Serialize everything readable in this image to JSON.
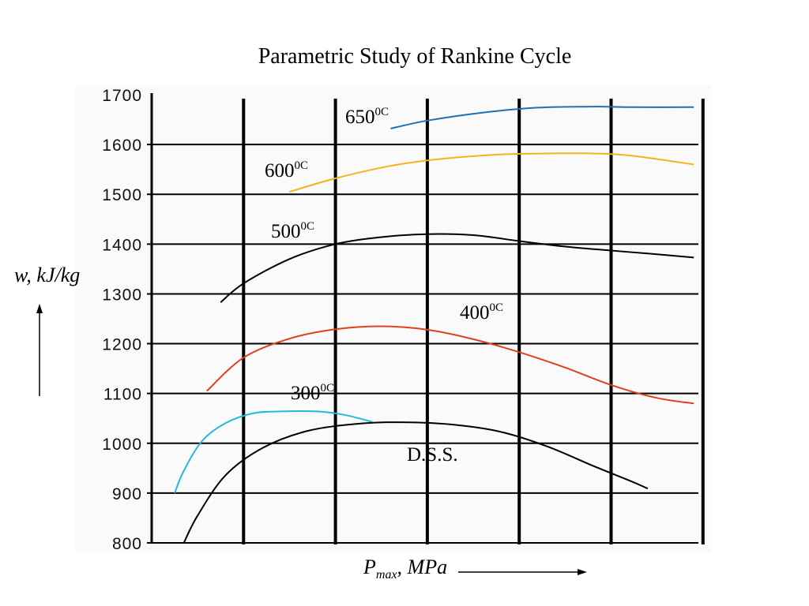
{
  "chart_data": {
    "type": "line",
    "title": "Parametric Study of Rankine Cycle",
    "ylabel": "w, kJ/kg",
    "xlabel_main": "P",
    "xlabel_sub": "max",
    "xlabel_unit": ", MPa",
    "ylim": [
      800,
      1700
    ],
    "y_ticks": [
      "1700",
      "1600",
      "1500",
      "1400",
      "1300",
      "1200",
      "1100",
      "1000",
      "900",
      "800"
    ],
    "x_positions": [
      0,
      1,
      2,
      3,
      4,
      5,
      6
    ],
    "grid": true,
    "series": [
      {
        "name": "650",
        "unit": "0C",
        "color": "#1f6fb5",
        "points": [
          [
            2.6,
            1632
          ],
          [
            3.0,
            1648
          ],
          [
            3.6,
            1664
          ],
          [
            4.2,
            1674
          ],
          [
            4.8,
            1676
          ],
          [
            5.2,
            1675
          ],
          [
            5.9,
            1675
          ]
        ]
      },
      {
        "name": "600",
        "unit": "0C",
        "color": "#f5b318",
        "points": [
          [
            1.5,
            1505
          ],
          [
            2.0,
            1532
          ],
          [
            2.6,
            1557
          ],
          [
            3.2,
            1572
          ],
          [
            3.8,
            1580
          ],
          [
            4.3,
            1582
          ],
          [
            4.8,
            1582
          ],
          [
            5.2,
            1578
          ],
          [
            5.9,
            1560
          ]
        ]
      },
      {
        "name": "500",
        "unit": "0C",
        "color": "#000000",
        "points": [
          [
            0.75,
            1283
          ],
          [
            1.0,
            1321
          ],
          [
            1.5,
            1370
          ],
          [
            2.0,
            1400
          ],
          [
            2.5,
            1414
          ],
          [
            3.0,
            1420
          ],
          [
            3.5,
            1418
          ],
          [
            4.0,
            1406
          ],
          [
            4.5,
            1395
          ],
          [
            5.0,
            1387
          ],
          [
            5.4,
            1381
          ],
          [
            5.9,
            1373
          ]
        ]
      },
      {
        "name": "400",
        "unit": "0C",
        "color": "#e0401a",
        "points": [
          [
            0.6,
            1105
          ],
          [
            1.0,
            1172
          ],
          [
            1.5,
            1210
          ],
          [
            2.0,
            1229
          ],
          [
            2.5,
            1235
          ],
          [
            3.0,
            1228
          ],
          [
            3.5,
            1209
          ],
          [
            4.0,
            1183
          ],
          [
            4.5,
            1152
          ],
          [
            5.0,
            1117
          ],
          [
            5.5,
            1091
          ],
          [
            5.9,
            1080
          ]
        ]
      },
      {
        "name": "300",
        "unit": "0C",
        "color": "#22bbdd",
        "points": [
          [
            0.25,
            900
          ],
          [
            0.35,
            945
          ],
          [
            0.55,
            1005
          ],
          [
            0.8,
            1040
          ],
          [
            1.1,
            1060
          ],
          [
            1.4,
            1064
          ],
          [
            1.8,
            1064
          ],
          [
            2.1,
            1057
          ],
          [
            2.4,
            1043
          ]
        ]
      }
    ],
    "dss_curve": {
      "name": "D.S.S.",
      "color": "#000000",
      "points": [
        [
          0.35,
          800
        ],
        [
          0.5,
          855
        ],
        [
          0.8,
          935
        ],
        [
          1.2,
          990
        ],
        [
          1.7,
          1025
        ],
        [
          2.3,
          1040
        ],
        [
          2.8,
          1042
        ],
        [
          3.3,
          1037
        ],
        [
          3.8,
          1023
        ],
        [
          4.3,
          994
        ],
        [
          4.8,
          955
        ],
        [
          5.2,
          925
        ],
        [
          5.4,
          909
        ]
      ]
    }
  }
}
